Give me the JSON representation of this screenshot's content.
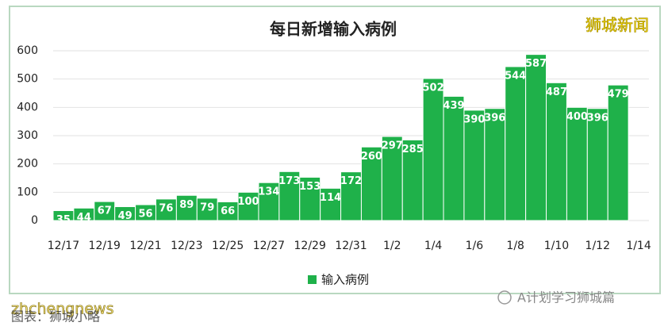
{
  "chart_data": {
    "type": "bar",
    "title": "每日新增输入病例",
    "categories": [
      "12/17",
      null,
      "12/19",
      null,
      "12/21",
      null,
      "12/23",
      null,
      "12/25",
      null,
      "12/27",
      null,
      "12/29",
      null,
      "12/31",
      null,
      "1/2",
      null,
      "1/4",
      null,
      "1/6",
      null,
      "1/8",
      null,
      "1/10",
      null,
      "1/12",
      null,
      "1/14"
    ],
    "series": [
      {
        "name": "输入病例",
        "color": "#1fb14a",
        "values": [
          35,
          44,
          67,
          49,
          56,
          76,
          89,
          79,
          66,
          100,
          134,
          173,
          153,
          114,
          172,
          260,
          297,
          285,
          502,
          439,
          390,
          396,
          544,
          587,
          487,
          400,
          396,
          479,
          null
        ]
      }
    ],
    "ylim": [
      0,
      600
    ],
    "yticks": [
      0,
      100,
      200,
      300,
      400,
      500,
      600
    ],
    "grid": true,
    "legend": "bottom",
    "annotations": [
      "狮城新闻",
      "zhchengnews",
      "图表：狮城小略",
      "A计划学习狮城篇"
    ]
  }
}
